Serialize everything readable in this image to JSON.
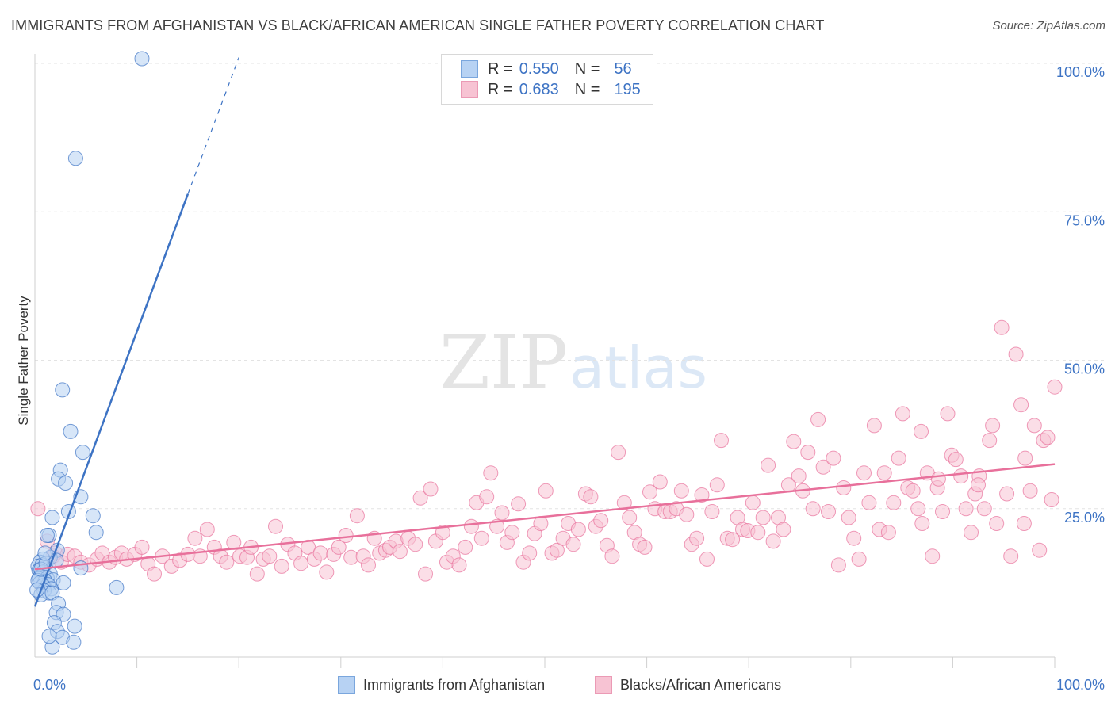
{
  "title": "IMMIGRANTS FROM AFGHANISTAN VS BLACK/AFRICAN AMERICAN SINGLE FATHER POVERTY CORRELATION CHART",
  "source": "Source: ZipAtlas.com",
  "watermark": {
    "zip": "ZIP",
    "atlas": "atlas"
  },
  "legend": {
    "r_label": "R =",
    "n_label": "N =",
    "rows": [
      {
        "name": "Immigrants from Afghanistan",
        "r": "0.550",
        "n": "56",
        "color": "#3d73c4"
      },
      {
        "name": "Blacks/African Americans",
        "r": "0.683",
        "n": "195",
        "color": "#e8709b"
      }
    ]
  },
  "bottom_legend": [
    {
      "label": "Immigrants from Afghanistan"
    },
    {
      "label": "Blacks/African Americans"
    }
  ],
  "chart_data": {
    "type": "scatter",
    "title": "IMMIGRANTS FROM AFGHANISTAN VS BLACK/AFRICAN AMERICAN SINGLE FATHER POVERTY CORRELATION CHART",
    "xlabel": "",
    "ylabel": "Single Father Poverty",
    "xlim": [
      0,
      100
    ],
    "ylim": [
      0,
      100
    ],
    "x_tick_labels": [
      {
        "value": 0,
        "label": "0.0%"
      },
      {
        "value": 100,
        "label": "100.0%"
      }
    ],
    "y_tick_labels": [
      {
        "value": 25,
        "label": "25.0%"
      },
      {
        "value": 50,
        "label": "50.0%"
      },
      {
        "value": 75,
        "label": "75.0%"
      },
      {
        "value": 100,
        "label": "100.0%"
      }
    ],
    "series": [
      {
        "name": "Immigrants from Afghanistan",
        "color": "#3d73c4",
        "fill": "#b7d2f3",
        "trend": {
          "x0": 0,
          "y0": 8.5,
          "x1": 15,
          "y1": 78,
          "dash_to_x": 20,
          "dash_to_y": 101
        },
        "points": [
          [
            10.5,
            100.8
          ],
          [
            4.0,
            84.0
          ],
          [
            2.7,
            45.0
          ],
          [
            3.5,
            38.0
          ],
          [
            4.7,
            34.5
          ],
          [
            2.5,
            31.5
          ],
          [
            2.3,
            30.0
          ],
          [
            3.0,
            29.3
          ],
          [
            4.5,
            27.0
          ],
          [
            3.3,
            24.5
          ],
          [
            5.7,
            23.8
          ],
          [
            1.7,
            23.5
          ],
          [
            6.0,
            21.0
          ],
          [
            1.4,
            20.5
          ],
          [
            1.2,
            20.5
          ],
          [
            2.2,
            18.0
          ],
          [
            1.5,
            16.8
          ],
          [
            0.8,
            16.5
          ],
          [
            0.5,
            16.0
          ],
          [
            0.3,
            15.3
          ],
          [
            0.7,
            15.5
          ],
          [
            4.5,
            15.0
          ],
          [
            0.4,
            14.6
          ],
          [
            0.8,
            14.3
          ],
          [
            1.5,
            14.0
          ],
          [
            0.5,
            13.5
          ],
          [
            0.4,
            13.2
          ],
          [
            1.2,
            13.3
          ],
          [
            1.8,
            13.0
          ],
          [
            1.0,
            12.8
          ],
          [
            0.5,
            12.5
          ],
          [
            2.8,
            12.5
          ],
          [
            1.3,
            12.2
          ],
          [
            0.8,
            12.0
          ],
          [
            1.6,
            11.5
          ],
          [
            0.9,
            11.2
          ],
          [
            1.4,
            10.8
          ],
          [
            0.6,
            10.5
          ],
          [
            8.0,
            11.7
          ],
          [
            1.7,
            10.8
          ],
          [
            2.3,
            9.0
          ],
          [
            2.1,
            7.5
          ],
          [
            2.8,
            7.2
          ],
          [
            1.9,
            5.8
          ],
          [
            3.9,
            5.2
          ],
          [
            2.2,
            4.3
          ],
          [
            2.7,
            3.3
          ],
          [
            3.8,
            2.5
          ],
          [
            1.7,
            1.7
          ],
          [
            1.4,
            3.5
          ],
          [
            0.3,
            12.9
          ],
          [
            0.6,
            14.8
          ],
          [
            1.1,
            15.8
          ],
          [
            0.2,
            11.3
          ],
          [
            2.1,
            16.3
          ],
          [
            1.0,
            17.5
          ]
        ]
      },
      {
        "name": "Blacks/African Americans",
        "color": "#e8709b",
        "fill": "#f7c3d3",
        "trend": {
          "x0": 0,
          "y0": 14.8,
          "x1": 100,
          "y1": 32.5
        },
        "points": [
          [
            0.3,
            25.0
          ],
          [
            1.2,
            19.5
          ],
          [
            1.8,
            17.0
          ],
          [
            2.0,
            17.5
          ],
          [
            2.6,
            16.0
          ],
          [
            3.2,
            17.3
          ],
          [
            3.9,
            17.0
          ],
          [
            4.5,
            16.0
          ],
          [
            5.3,
            15.5
          ],
          [
            6.1,
            16.5
          ],
          [
            6.6,
            17.5
          ],
          [
            7.3,
            16.0
          ],
          [
            7.9,
            16.8
          ],
          [
            8.5,
            17.5
          ],
          [
            9.0,
            16.5
          ],
          [
            9.8,
            17.3
          ],
          [
            10.5,
            18.5
          ],
          [
            11.1,
            15.7
          ],
          [
            11.7,
            14.0
          ],
          [
            12.5,
            17.0
          ],
          [
            13.4,
            15.3
          ],
          [
            14.2,
            16.3
          ],
          [
            15.0,
            17.3
          ],
          [
            15.7,
            20.0
          ],
          [
            16.2,
            17.0
          ],
          [
            16.9,
            21.5
          ],
          [
            17.6,
            18.5
          ],
          [
            18.2,
            17.0
          ],
          [
            18.8,
            16.0
          ],
          [
            19.5,
            19.3
          ],
          [
            20.1,
            17.0
          ],
          [
            20.8,
            16.8
          ],
          [
            21.2,
            18.5
          ],
          [
            21.8,
            14.0
          ],
          [
            22.4,
            16.5
          ],
          [
            23.0,
            17.0
          ],
          [
            23.6,
            22.0
          ],
          [
            24.2,
            15.3
          ],
          [
            24.8,
            19.0
          ],
          [
            25.5,
            17.5
          ],
          [
            26.1,
            15.8
          ],
          [
            26.8,
            18.5
          ],
          [
            27.4,
            16.5
          ],
          [
            28.0,
            17.5
          ],
          [
            28.6,
            14.3
          ],
          [
            29.3,
            17.3
          ],
          [
            29.8,
            18.5
          ],
          [
            30.5,
            20.5
          ],
          [
            31.0,
            16.8
          ],
          [
            31.6,
            23.8
          ],
          [
            32.2,
            17.0
          ],
          [
            32.7,
            15.5
          ],
          [
            33.3,
            20.0
          ],
          [
            33.8,
            17.5
          ],
          [
            34.4,
            18.0
          ],
          [
            34.8,
            18.5
          ],
          [
            35.4,
            19.5
          ],
          [
            35.8,
            17.8
          ],
          [
            36.6,
            20.0
          ],
          [
            37.3,
            19.0
          ],
          [
            37.8,
            26.8
          ],
          [
            38.3,
            14.0
          ],
          [
            38.8,
            28.3
          ],
          [
            39.3,
            19.5
          ],
          [
            40.0,
            21.0
          ],
          [
            40.4,
            16.0
          ],
          [
            41.0,
            17.0
          ],
          [
            41.6,
            15.5
          ],
          [
            42.2,
            18.5
          ],
          [
            42.8,
            22.0
          ],
          [
            43.3,
            26.0
          ],
          [
            43.8,
            20.0
          ],
          [
            44.3,
            27.0
          ],
          [
            44.7,
            31.0
          ],
          [
            45.3,
            22.0
          ],
          [
            45.8,
            24.3
          ],
          [
            46.3,
            19.3
          ],
          [
            46.8,
            21.0
          ],
          [
            47.4,
            25.8
          ],
          [
            47.9,
            16.0
          ],
          [
            48.5,
            17.5
          ],
          [
            49.0,
            20.8
          ],
          [
            49.6,
            22.5
          ],
          [
            50.1,
            28.0
          ],
          [
            50.7,
            17.5
          ],
          [
            51.2,
            18.0
          ],
          [
            51.8,
            20.0
          ],
          [
            52.3,
            22.5
          ],
          [
            52.8,
            19.0
          ],
          [
            53.3,
            21.5
          ],
          [
            54.0,
            27.5
          ],
          [
            54.5,
            27.0
          ],
          [
            55.0,
            22.0
          ],
          [
            55.5,
            23.0
          ],
          [
            56.1,
            18.8
          ],
          [
            56.6,
            17.0
          ],
          [
            57.2,
            34.5
          ],
          [
            57.8,
            26.0
          ],
          [
            58.3,
            23.5
          ],
          [
            58.8,
            21.0
          ],
          [
            59.3,
            19.0
          ],
          [
            59.8,
            18.5
          ],
          [
            60.3,
            27.8
          ],
          [
            60.8,
            25.0
          ],
          [
            61.3,
            29.5
          ],
          [
            61.8,
            24.5
          ],
          [
            62.3,
            24.5
          ],
          [
            62.9,
            25.0
          ],
          [
            63.4,
            28.0
          ],
          [
            63.9,
            24.0
          ],
          [
            64.4,
            19.0
          ],
          [
            64.9,
            20.0
          ],
          [
            65.4,
            27.3
          ],
          [
            65.9,
            16.5
          ],
          [
            66.4,
            24.5
          ],
          [
            66.9,
            29.0
          ],
          [
            67.3,
            36.5
          ],
          [
            67.9,
            20.0
          ],
          [
            68.4,
            19.8
          ],
          [
            68.9,
            23.5
          ],
          [
            69.4,
            21.5
          ],
          [
            69.9,
            21.3
          ],
          [
            70.4,
            26.0
          ],
          [
            70.9,
            21.0
          ],
          [
            71.4,
            23.5
          ],
          [
            71.9,
            32.3
          ],
          [
            72.4,
            19.5
          ],
          [
            72.9,
            23.5
          ],
          [
            73.4,
            21.5
          ],
          [
            73.9,
            29.0
          ],
          [
            74.4,
            36.3
          ],
          [
            74.9,
            30.5
          ],
          [
            75.3,
            28.0
          ],
          [
            75.8,
            34.5
          ],
          [
            76.3,
            25.0
          ],
          [
            76.8,
            40.0
          ],
          [
            77.3,
            32.0
          ],
          [
            77.8,
            24.5
          ],
          [
            78.3,
            33.5
          ],
          [
            78.8,
            15.5
          ],
          [
            79.3,
            28.5
          ],
          [
            79.8,
            23.5
          ],
          [
            80.3,
            20.0
          ],
          [
            80.8,
            16.5
          ],
          [
            81.3,
            31.0
          ],
          [
            81.8,
            26.0
          ],
          [
            82.3,
            39.0
          ],
          [
            82.8,
            21.5
          ],
          [
            83.3,
            31.0
          ],
          [
            83.7,
            21.0
          ],
          [
            84.2,
            26.0
          ],
          [
            84.7,
            33.5
          ],
          [
            85.1,
            41.0
          ],
          [
            85.6,
            28.5
          ],
          [
            86.1,
            28.0
          ],
          [
            86.6,
            25.0
          ],
          [
            87.0,
            22.5
          ],
          [
            87.5,
            31.0
          ],
          [
            88.0,
            17.0
          ],
          [
            88.5,
            28.5
          ],
          [
            89.0,
            24.5
          ],
          [
            89.5,
            41.0
          ],
          [
            89.9,
            34.0
          ],
          [
            90.3,
            33.3
          ],
          [
            90.8,
            30.5
          ],
          [
            91.3,
            25.0
          ],
          [
            91.8,
            21.0
          ],
          [
            92.2,
            27.5
          ],
          [
            92.6,
            30.5
          ],
          [
            93.1,
            25.0
          ],
          [
            93.6,
            36.5
          ],
          [
            93.9,
            39.0
          ],
          [
            94.3,
            22.5
          ],
          [
            94.8,
            55.5
          ],
          [
            95.3,
            27.5
          ],
          [
            95.7,
            17.0
          ],
          [
            96.2,
            51.0
          ],
          [
            96.7,
            42.5
          ],
          [
            97.1,
            33.5
          ],
          [
            97.6,
            28.0
          ],
          [
            98.0,
            39.0
          ],
          [
            98.5,
            18.0
          ],
          [
            98.9,
            36.5
          ],
          [
            99.3,
            37.0
          ],
          [
            99.7,
            26.5
          ],
          [
            100.0,
            45.5
          ],
          [
            97.0,
            22.5
          ],
          [
            92.5,
            29.0
          ],
          [
            88.6,
            30.0
          ],
          [
            86.9,
            38.0
          ]
        ]
      }
    ]
  }
}
